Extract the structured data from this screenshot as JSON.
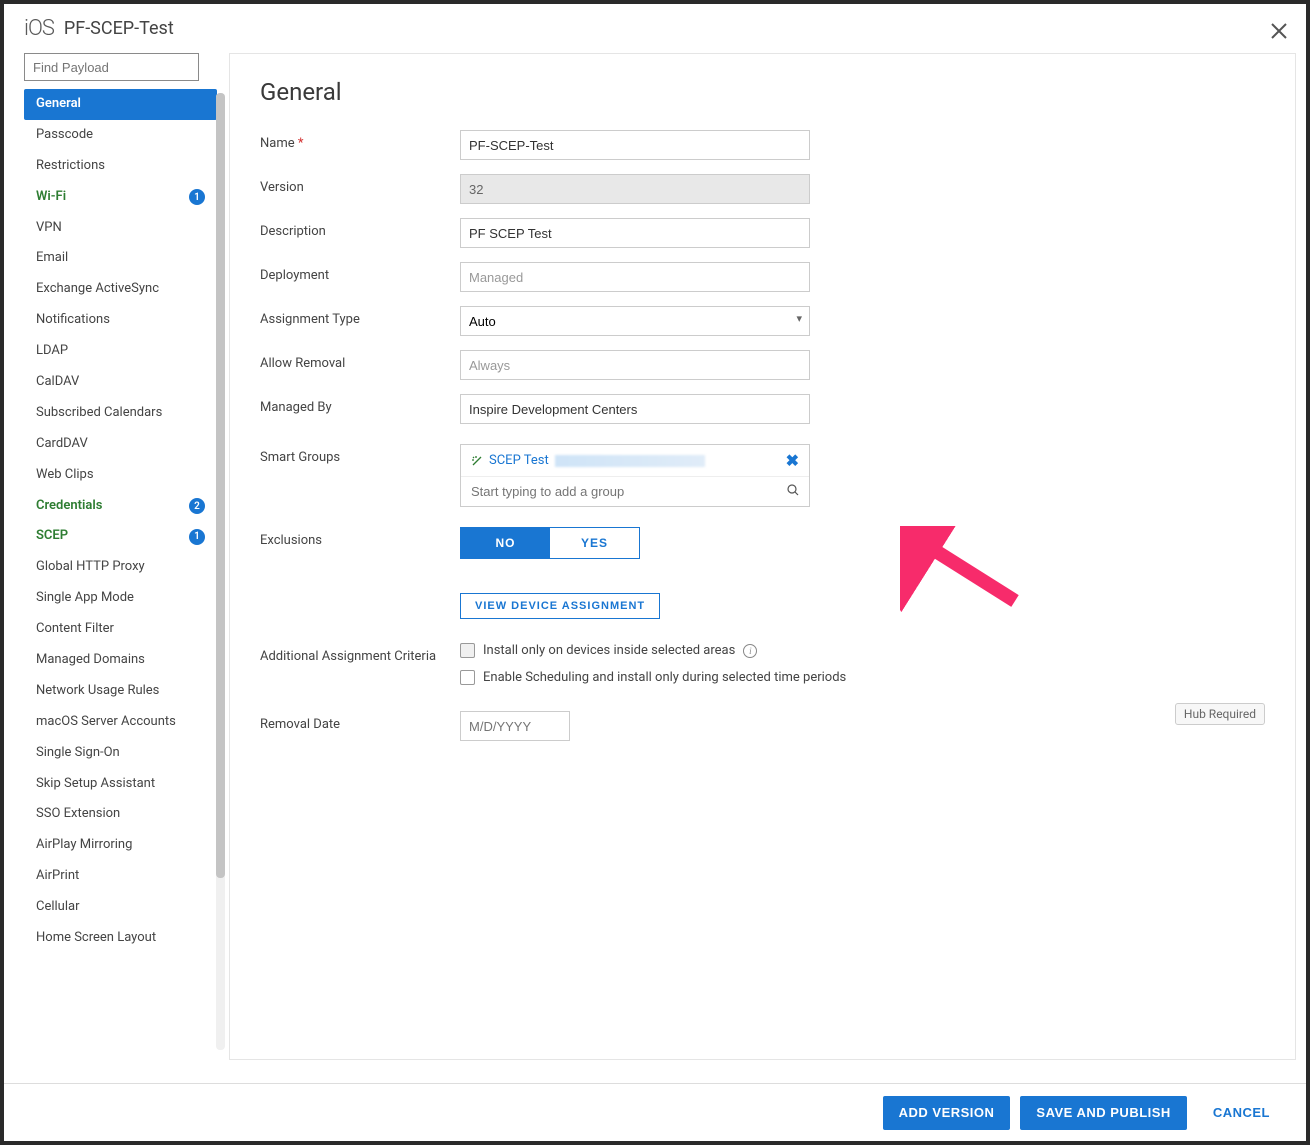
{
  "header": {
    "platform": "iOS",
    "title": "PF-SCEP-Test"
  },
  "sidebar": {
    "search_placeholder": "Find Payload",
    "items": [
      {
        "label": "General",
        "active": true
      },
      {
        "label": "Passcode"
      },
      {
        "label": "Restrictions"
      },
      {
        "label": "Wi-Fi",
        "configured": true,
        "badge": "1"
      },
      {
        "label": "VPN"
      },
      {
        "label": "Email"
      },
      {
        "label": "Exchange ActiveSync"
      },
      {
        "label": "Notifications"
      },
      {
        "label": "LDAP"
      },
      {
        "label": "CalDAV"
      },
      {
        "label": "Subscribed Calendars"
      },
      {
        "label": "CardDAV"
      },
      {
        "label": "Web Clips"
      },
      {
        "label": "Credentials",
        "configured": true,
        "badge": "2"
      },
      {
        "label": "SCEP",
        "configured": true,
        "badge": "1"
      },
      {
        "label": "Global HTTP Proxy"
      },
      {
        "label": "Single App Mode"
      },
      {
        "label": "Content Filter"
      },
      {
        "label": "Managed Domains"
      },
      {
        "label": "Network Usage Rules"
      },
      {
        "label": "macOS Server Accounts"
      },
      {
        "label": "Single Sign-On"
      },
      {
        "label": "Skip Setup Assistant"
      },
      {
        "label": "SSO Extension"
      },
      {
        "label": "AirPlay Mirroring"
      },
      {
        "label": "AirPrint"
      },
      {
        "label": "Cellular"
      },
      {
        "label": "Home Screen Layout"
      }
    ]
  },
  "main": {
    "title": "General",
    "fields": {
      "name_label": "Name",
      "name_value": "PF-SCEP-Test",
      "version_label": "Version",
      "version_value": "32",
      "description_label": "Description",
      "description_value": "PF SCEP Test",
      "deployment_label": "Deployment",
      "deployment_value": "Managed",
      "assignment_type_label": "Assignment Type",
      "assignment_type_value": "Auto",
      "allow_removal_label": "Allow Removal",
      "allow_removal_value": "Always",
      "managed_by_label": "Managed By",
      "managed_by_value": "Inspire Development Centers",
      "smart_groups_label": "Smart Groups",
      "smart_group_tag": "SCEP Test",
      "smart_group_placeholder": "Start typing to add a group",
      "exclusions_label": "Exclusions",
      "exclusions_no": "NO",
      "exclusions_yes": "YES",
      "view_device_btn": "VIEW DEVICE ASSIGNMENT",
      "additional_criteria_label": "Additional Assignment Criteria",
      "checkbox1": "Install only on devices inside selected areas",
      "checkbox2": "Enable Scheduling and install only during selected time periods",
      "hub_required": "Hub Required",
      "removal_date_label": "Removal Date",
      "removal_date_placeholder": "M/D/YYYY"
    }
  },
  "footer": {
    "add_version": "ADD VERSION",
    "save_publish": "SAVE AND PUBLISH",
    "cancel": "CANCEL"
  },
  "colors": {
    "primary": "#1976d2",
    "configured": "#2e7d32",
    "arrow": "#f72b6b"
  }
}
